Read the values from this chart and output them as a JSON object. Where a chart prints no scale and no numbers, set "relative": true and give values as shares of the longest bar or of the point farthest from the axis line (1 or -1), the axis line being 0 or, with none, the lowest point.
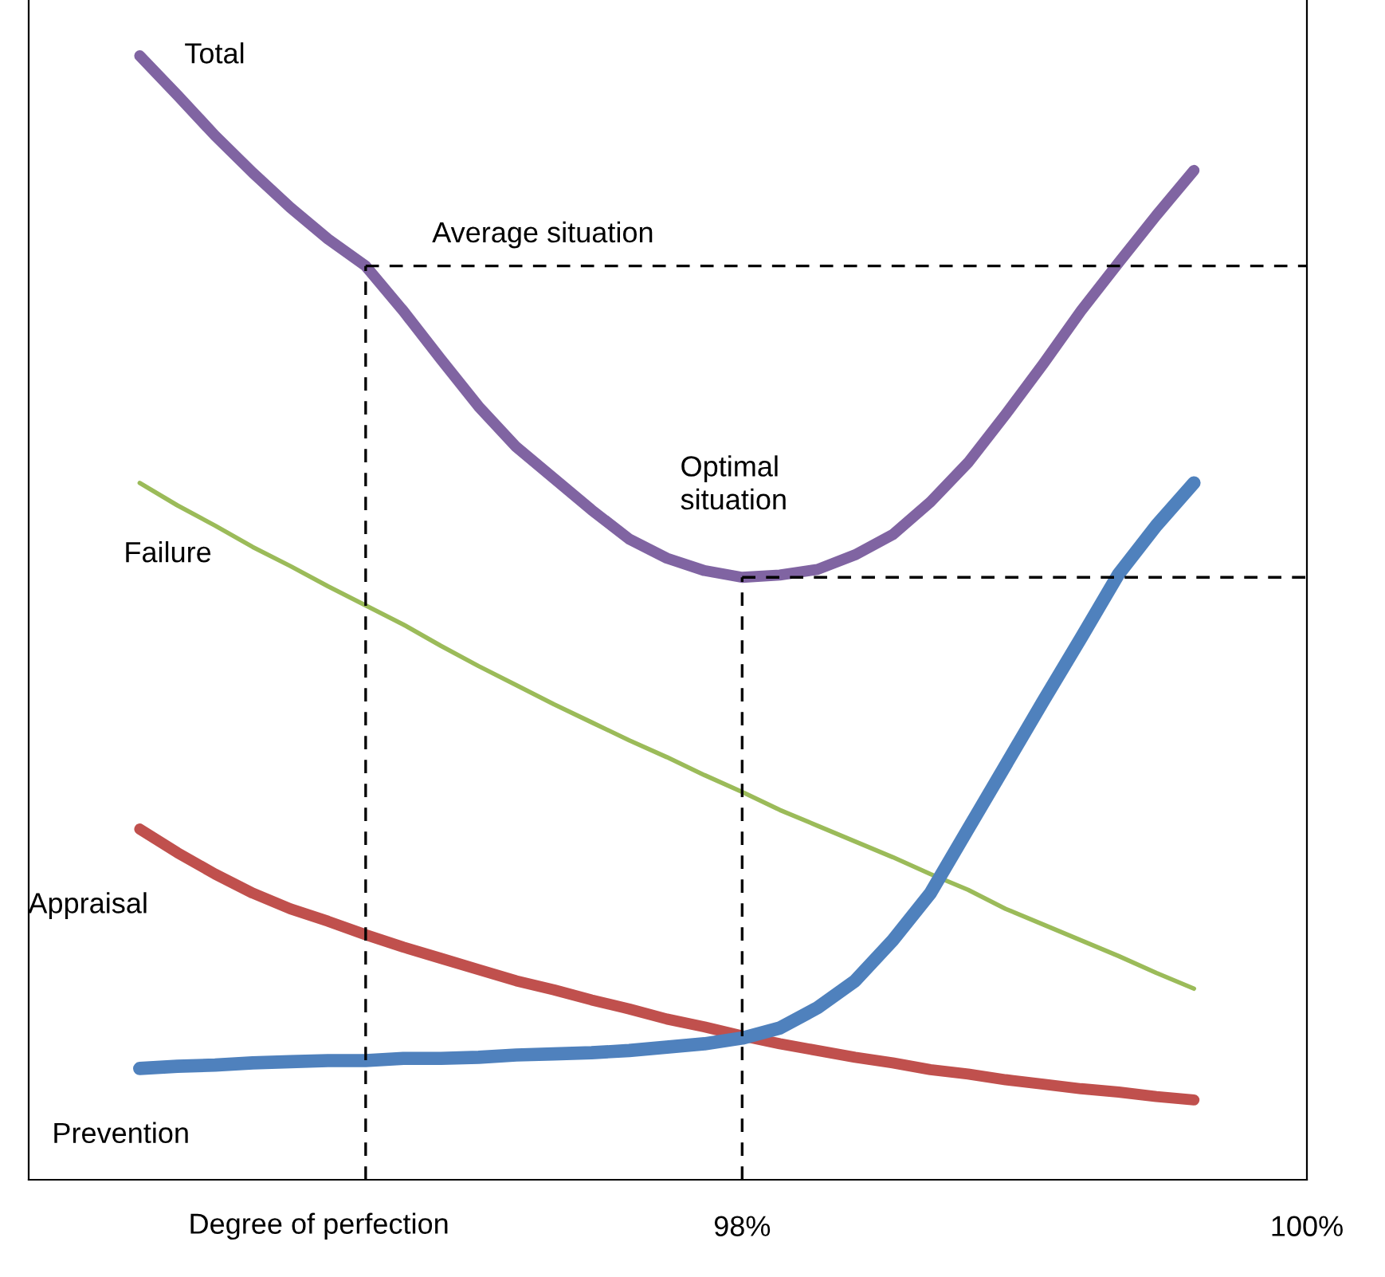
{
  "chart_data": {
    "type": "line",
    "relative": true,
    "xlabel": "Degree of perfection",
    "categories": [
      null,
      null,
      null,
      null,
      null,
      null,
      null,
      null,
      null,
      null,
      null,
      null,
      null,
      null,
      null,
      null,
      "98%",
      null,
      null,
      null,
      null,
      null,
      null,
      null,
      null,
      null,
      null,
      null,
      null,
      null,
      null,
      "100%"
    ],
    "series": [
      {
        "name": "Total",
        "color": "#8064a2",
        "values": [
          1.0,
          0.965,
          0.929,
          0.896,
          0.865,
          0.837,
          0.813,
          0.773,
          0.73,
          0.688,
          0.652,
          0.624,
          0.596,
          0.57,
          0.553,
          0.542,
          0.536,
          0.538,
          0.543,
          0.556,
          0.574,
          0.603,
          0.638,
          0.681,
          0.726,
          0.773,
          0.816,
          0.858,
          0.898,
          null,
          null,
          null
        ]
      },
      {
        "name": "Failure",
        "color": "#9bbb59",
        "values": [
          0.62,
          0.6,
          0.582,
          0.563,
          0.546,
          0.528,
          0.511,
          0.494,
          0.475,
          0.457,
          0.44,
          0.423,
          0.407,
          0.391,
          0.376,
          0.36,
          0.345,
          0.329,
          0.315,
          0.301,
          0.287,
          0.272,
          0.258,
          0.241,
          0.227,
          0.213,
          0.199,
          0.184,
          0.17,
          null,
          null,
          null
        ]
      },
      {
        "name": "Appraisal",
        "color": "#c0504d",
        "values": [
          0.312,
          0.291,
          0.272,
          0.255,
          0.241,
          0.23,
          0.218,
          0.207,
          0.197,
          0.187,
          0.177,
          0.169,
          0.16,
          0.152,
          0.143,
          0.136,
          0.128,
          0.121,
          0.115,
          0.109,
          0.104,
          0.098,
          0.094,
          0.089,
          0.085,
          0.081,
          0.078,
          0.074,
          0.071,
          null,
          null,
          null
        ]
      },
      {
        "name": "Prevention",
        "color": "#4f81bd",
        "values": [
          0.099,
          0.101,
          0.102,
          0.104,
          0.105,
          0.106,
          0.106,
          0.108,
          0.108,
          0.109,
          0.111,
          0.112,
          0.113,
          0.115,
          0.118,
          0.121,
          0.126,
          0.135,
          0.153,
          0.177,
          0.213,
          0.255,
          0.312,
          0.369,
          0.426,
          0.482,
          0.539,
          0.582,
          0.62,
          null,
          null,
          null
        ]
      }
    ],
    "ref_lines": [
      {
        "axis": "y",
        "value": 0.813,
        "label": "Average situation",
        "color": "#000000",
        "line_style": "dashed"
      },
      {
        "axis": "y",
        "value": 0.536,
        "label": "Optimal\nsituation",
        "color": "#000000",
        "line_style": "dashed"
      }
    ],
    "grid": false,
    "legend": false,
    "marker": "none",
    "line_style": "solid"
  }
}
